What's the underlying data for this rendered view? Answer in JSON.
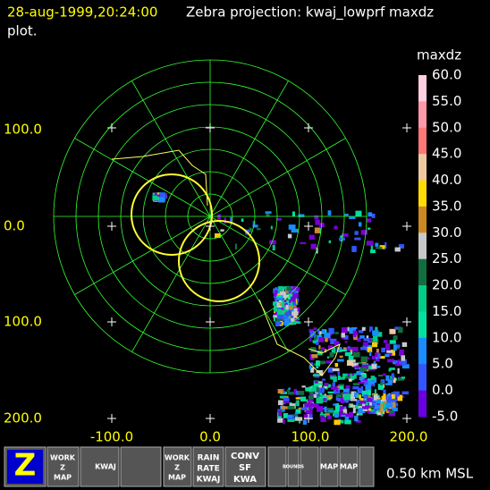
{
  "header": {
    "time": "28-aug-1999,20:24:00",
    "title": "Zebra projection: kwaj_lowprf maxdz",
    "line2": "plot."
  },
  "colorbar": {
    "label": "maxdz",
    "ticks": [
      "60.0",
      "55.0",
      "50.0",
      "45.0",
      "40.0",
      "35.0",
      "30.0",
      "25.0",
      "20.0",
      "15.0",
      "10.0",
      "5.0",
      "0.0",
      "-5.0"
    ]
  },
  "axes": {
    "y_labels": [
      "100.0",
      "0.0",
      "100.0",
      "200.0"
    ],
    "x_labels": [
      "-100.0",
      "0.0",
      "100.0",
      "200.0"
    ]
  },
  "toolbar": {
    "icons": [
      [
        "Z"
      ],
      [
        "WORK",
        "Z",
        "MAP"
      ],
      [
        "KWAJ"
      ],
      [
        "WORK",
        "Z",
        "MAP"
      ],
      [
        "RAIN",
        "RATE",
        "KWAJ"
      ],
      [
        "CONV",
        "SF",
        "KWA"
      ],
      [
        "BOUNDS"
      ],
      [
        "MAP"
      ],
      [
        "MAP"
      ]
    ],
    "altitude": "0.50 km MSL"
  }
}
